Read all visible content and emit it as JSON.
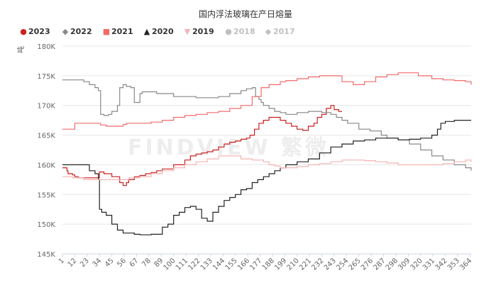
{
  "chart_data": {
    "type": "line",
    "title": "国内浮法玻璃在产日熔量",
    "ylabel": "吨",
    "xlabel": "",
    "ylim": [
      145000,
      180000
    ],
    "yticks": [
      "145K",
      "150K",
      "155K",
      "160K",
      "165K",
      "170K",
      "175K",
      "180K"
    ],
    "ytick_values": [
      145000,
      150000,
      155000,
      160000,
      165000,
      170000,
      175000,
      180000
    ],
    "xlim": [
      1,
      365
    ],
    "xticks": [
      1,
      12,
      23,
      34,
      45,
      56,
      67,
      78,
      89,
      100,
      111,
      122,
      133,
      144,
      155,
      166,
      177,
      188,
      199,
      210,
      221,
      232,
      243,
      254,
      265,
      276,
      287,
      298,
      309,
      320,
      331,
      342,
      353,
      364
    ],
    "grid": "horizontal",
    "legend_position": "top-left",
    "watermark": "FINDVIEW 繁微",
    "series": [
      {
        "name": "2023",
        "color": "#cc1f1f",
        "marker": "●",
        "faded": false,
        "x": [
          1,
          5,
          6,
          10,
          12,
          15,
          34,
          38,
          45,
          52,
          55,
          58,
          60,
          65,
          70,
          75,
          80,
          85,
          90,
          100,
          110,
          115,
          120,
          125,
          130,
          135,
          140,
          145,
          150,
          155,
          160,
          165,
          168,
          172,
          176,
          180,
          185,
          190,
          195,
          200,
          205,
          210,
          215,
          220,
          225,
          228,
          232,
          236,
          240,
          243,
          247,
          250
        ],
        "y": [
          159500,
          159000,
          158500,
          158300,
          158000,
          157800,
          158800,
          158500,
          158000,
          157000,
          156500,
          157000,
          157500,
          158000,
          158200,
          158500,
          158700,
          159000,
          159300,
          160000,
          160800,
          161500,
          161800,
          162000,
          162200,
          162500,
          163000,
          163500,
          163800,
          164000,
          164300,
          164500,
          165000,
          166000,
          167000,
          167500,
          168000,
          168000,
          167500,
          167000,
          166500,
          166000,
          165800,
          166500,
          167000,
          168000,
          168500,
          169500,
          170000,
          169300,
          169000,
          169000
        ]
      },
      {
        "name": "2022",
        "color": "#888888",
        "marker": "◆",
        "faded": false,
        "x": [
          1,
          10,
          20,
          25,
          30,
          33,
          35,
          38,
          42,
          45,
          50,
          52,
          55,
          58,
          62,
          65,
          70,
          72,
          75,
          85,
          100,
          120,
          130,
          140,
          150,
          160,
          165,
          170,
          173,
          176,
          178,
          180,
          185,
          190,
          195,
          200,
          205,
          210,
          220,
          232,
          240,
          245,
          250,
          255,
          265,
          275,
          285,
          290,
          300,
          310,
          320,
          330,
          340,
          350,
          360,
          365
        ],
        "y": [
          174300,
          174300,
          174000,
          173500,
          173000,
          172500,
          168500,
          168300,
          168500,
          169000,
          170000,
          173000,
          173500,
          173200,
          173000,
          170500,
          172000,
          172300,
          172300,
          172000,
          171500,
          171300,
          171300,
          171500,
          172000,
          172500,
          172800,
          173000,
          171500,
          171000,
          170500,
          170000,
          169500,
          169000,
          168800,
          168500,
          168500,
          168800,
          169000,
          168800,
          168500,
          168000,
          167500,
          167000,
          166000,
          165700,
          165000,
          164500,
          164200,
          163500,
          162500,
          161500,
          160800,
          160000,
          159500,
          159000
        ]
      },
      {
        "name": "2021",
        "color": "#f26b6b",
        "marker": "■",
        "faded": false,
        "x": [
          1,
          8,
          12,
          20,
          30,
          35,
          40,
          50,
          55,
          58,
          62,
          70,
          80,
          90,
          100,
          110,
          120,
          130,
          140,
          150,
          160,
          170,
          178,
          185,
          195,
          200,
          210,
          220,
          230,
          240,
          250,
          260,
          270,
          280,
          290,
          300,
          310,
          318,
          325,
          330,
          340,
          350,
          360,
          365
        ],
        "y": [
          166000,
          166000,
          167000,
          167000,
          167000,
          166700,
          166500,
          166500,
          166800,
          167000,
          167000,
          167000,
          167200,
          167500,
          168000,
          168300,
          168500,
          168800,
          169000,
          169500,
          170000,
          171500,
          173000,
          173500,
          174000,
          174200,
          174500,
          174800,
          175000,
          175000,
          174000,
          173500,
          174000,
          174800,
          175200,
          175500,
          175500,
          175000,
          175000,
          174500,
          174300,
          174200,
          174000,
          173500
        ]
      },
      {
        "name": "2020",
        "color": "#222222",
        "marker": "▲",
        "faded": false,
        "x": [
          1,
          5,
          10,
          15,
          20,
          25,
          30,
          33,
          34,
          36,
          40,
          45,
          50,
          55,
          60,
          65,
          70,
          75,
          80,
          85,
          90,
          95,
          100,
          105,
          110,
          115,
          120,
          125,
          130,
          135,
          140,
          145,
          150,
          155,
          160,
          165,
          170,
          175,
          180,
          185,
          190,
          195,
          200,
          210,
          220,
          230,
          240,
          250,
          260,
          270,
          280,
          290,
          300,
          310,
          320,
          330,
          335,
          338,
          342,
          350,
          360,
          365
        ],
        "y": [
          160000,
          160000,
          160000,
          160000,
          160000,
          159000,
          158500,
          157500,
          152500,
          152000,
          151500,
          150000,
          149000,
          148500,
          148500,
          148300,
          148200,
          148200,
          148300,
          148300,
          149500,
          150000,
          151500,
          152000,
          152800,
          153000,
          152500,
          151000,
          150500,
          152000,
          153000,
          154000,
          154500,
          155000,
          155800,
          156000,
          157000,
          157500,
          158000,
          158500,
          159000,
          159500,
          160000,
          160500,
          161000,
          162000,
          163000,
          163500,
          164000,
          164200,
          164500,
          164500,
          164200,
          164300,
          164500,
          165000,
          166000,
          167000,
          167300,
          167500,
          167500,
          167500
        ]
      },
      {
        "name": "2019",
        "color": "#f5b3b3",
        "marker": "▼",
        "faded": false,
        "x": [
          1,
          10,
          20,
          30,
          40,
          50,
          60,
          70,
          80,
          90,
          100,
          110,
          120,
          130,
          140,
          150,
          160,
          170,
          180,
          185,
          190,
          195,
          200,
          210,
          220,
          230,
          240,
          250,
          260,
          270,
          280,
          290,
          300,
          310,
          320,
          330,
          340,
          350,
          360,
          365
        ],
        "y": [
          158000,
          157800,
          157500,
          157500,
          157500,
          157500,
          157800,
          158000,
          158500,
          159000,
          159500,
          160000,
          160500,
          161000,
          161500,
          161500,
          161000,
          160800,
          160500,
          160000,
          159800,
          159500,
          159500,
          159700,
          160000,
          160200,
          160500,
          160800,
          160800,
          160700,
          160500,
          160300,
          160000,
          160000,
          160000,
          160000,
          160200,
          160500,
          160800,
          160500
        ]
      },
      {
        "name": "2018",
        "color": "#c0c0c0",
        "marker": "●",
        "faded": true,
        "x": [],
        "y": []
      },
      {
        "name": "2017",
        "color": "#c0c0c0",
        "marker": "◆",
        "faded": true,
        "x": [],
        "y": []
      }
    ]
  }
}
